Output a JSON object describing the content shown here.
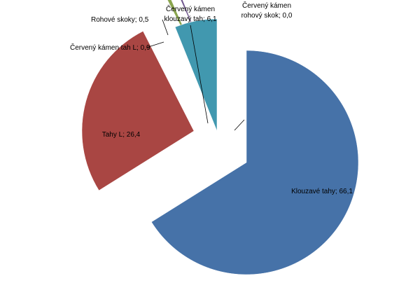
{
  "chart_data": {
    "type": "pie",
    "title": "",
    "slices": [
      {
        "name": "Klouzavé tahy",
        "value": 66.1,
        "color": "#4672A8",
        "label": "Klouzavé tahy; 66,1"
      },
      {
        "name": "Tahy L",
        "value": 26.4,
        "color": "#A94643",
        "label": "Tahy L; 26,4"
      },
      {
        "name": "Červený kámen tah L",
        "value": 0.9,
        "color": "#8AA54E",
        "label": "Červený kámen tah L; 0,9"
      },
      {
        "name": "Rohové skoky",
        "value": 0.5,
        "color": "#71588F",
        "label": "Rohové skoky; 0,5"
      },
      {
        "name": "Červený kámen klouzavý tah",
        "value": 6.1,
        "color": "#4198AF",
        "label_lines": [
          "Červený kámen",
          "klouzavý tah; 6,1"
        ]
      },
      {
        "name": "Červený kámen rohový skok",
        "value": 0.0,
        "color": "#DB843D",
        "label_lines": [
          "Červený kámen",
          "rohový skok; 0,0"
        ]
      }
    ],
    "legend": "none",
    "exploded": true
  }
}
